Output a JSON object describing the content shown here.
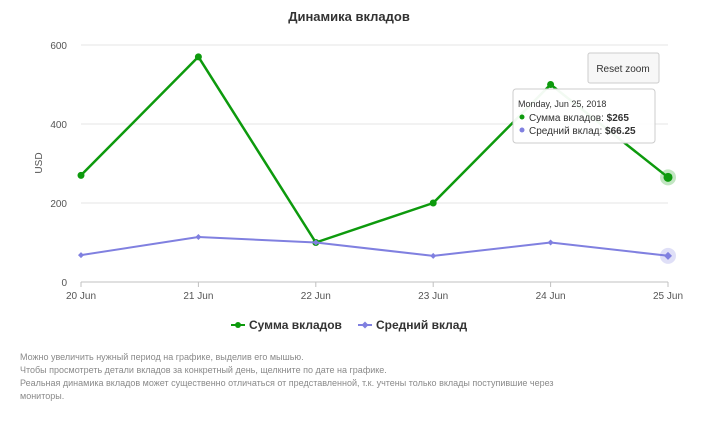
{
  "chart_data": {
    "type": "line",
    "title": "Динамика вкладов",
    "ylabel": "USD",
    "xlabel": "",
    "categories": [
      "20 Jun",
      "21 Jun",
      "22 Jun",
      "23 Jun",
      "24 Jun",
      "25 Jun"
    ],
    "ylim": [
      0,
      600
    ],
    "yticks": [
      "0",
      "200",
      "400",
      "600"
    ],
    "grid": true,
    "legend_position": "bottom",
    "series": [
      {
        "name": "Сумма вкладов",
        "color": "#0d9a0d",
        "values": [
          270,
          570,
          100,
          200,
          500,
          265
        ]
      },
      {
        "name": "Средний вклад",
        "color": "#8080e0",
        "values": [
          68,
          114,
          100,
          66,
          100,
          66.25
        ]
      }
    ],
    "tooltip": {
      "date": "Monday, Jun 25, 2018",
      "rows": [
        {
          "label": "Сумма вкладов",
          "value": "$265"
        },
        {
          "label": "Средний вклад",
          "value": "$66.25"
        }
      ]
    },
    "reset_zoom_label": "Reset zoom"
  },
  "notes": [
    "Можно увеличить нужный период на графике, выделив его мышью.",
    "Чтобы просмотреть детали вкладов за конкретный день, щелкните по дате на графике.",
    "Реальная динамика вкладов может существенно отличаться от представленной, т.к. учтены только вклады поступившие через",
    "мониторы."
  ]
}
